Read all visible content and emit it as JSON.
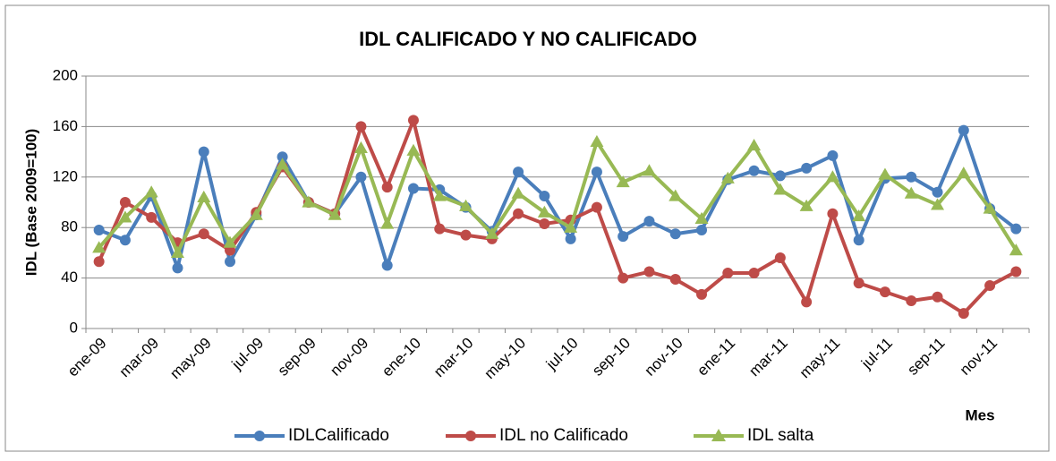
{
  "chart_data": {
    "type": "line",
    "title": "IDL CALIFICADO Y NO CALIFICADO",
    "ylabel": "IDL (Base 2009=100)",
    "xlabel": "Mes",
    "categories": [
      "ene-09",
      null,
      "mar-09",
      null,
      "may-09",
      null,
      "jul-09",
      null,
      "sep-09",
      null,
      "nov-09",
      null,
      "ene-10",
      null,
      "mar-10",
      null,
      "may-10",
      null,
      "jul-10",
      null,
      "sep-10",
      null,
      "nov-10",
      null,
      "ene-11",
      null,
      "mar-11",
      null,
      "may-11",
      null,
      "jul-11",
      null,
      "sep-11",
      null,
      "nov-11",
      null
    ],
    "series": [
      {
        "name": "IDLCalificado",
        "color": "#4a7ebb",
        "marker": "circle",
        "values": [
          78,
          70,
          105,
          48,
          140,
          53,
          90,
          136,
          100,
          91,
          120,
          50,
          111,
          110,
          96,
          77,
          124,
          105,
          71,
          124,
          73,
          85,
          75,
          78,
          118,
          125,
          121,
          127,
          137,
          70,
          119,
          120,
          108,
          157,
          95,
          79
        ]
      },
      {
        "name": "IDL no Calificado",
        "color": "#be4b48",
        "marker": "circle",
        "values": [
          53,
          100,
          88,
          68,
          75,
          62,
          92,
          128,
          100,
          91,
          160,
          112,
          165,
          79,
          74,
          71,
          91,
          83,
          86,
          96,
          40,
          45,
          39,
          27,
          44,
          44,
          56,
          21,
          91,
          36,
          29,
          22,
          25,
          12,
          34,
          45
        ]
      },
      {
        "name": "IDL salta",
        "color": "#98b954",
        "marker": "triangle",
        "values": [
          64,
          88,
          108,
          60,
          104,
          68,
          90,
          130,
          100,
          90,
          143,
          83,
          141,
          105,
          97,
          75,
          107,
          92,
          80,
          148,
          116,
          125,
          105,
          87,
          119,
          145,
          110,
          97,
          120,
          89,
          122,
          107,
          98,
          123,
          95,
          62
        ]
      }
    ],
    "ylim": [
      0,
      200
    ],
    "yticks": [
      0,
      40,
      80,
      120,
      160,
      200
    ],
    "grid": true,
    "legend": "bottom"
  }
}
